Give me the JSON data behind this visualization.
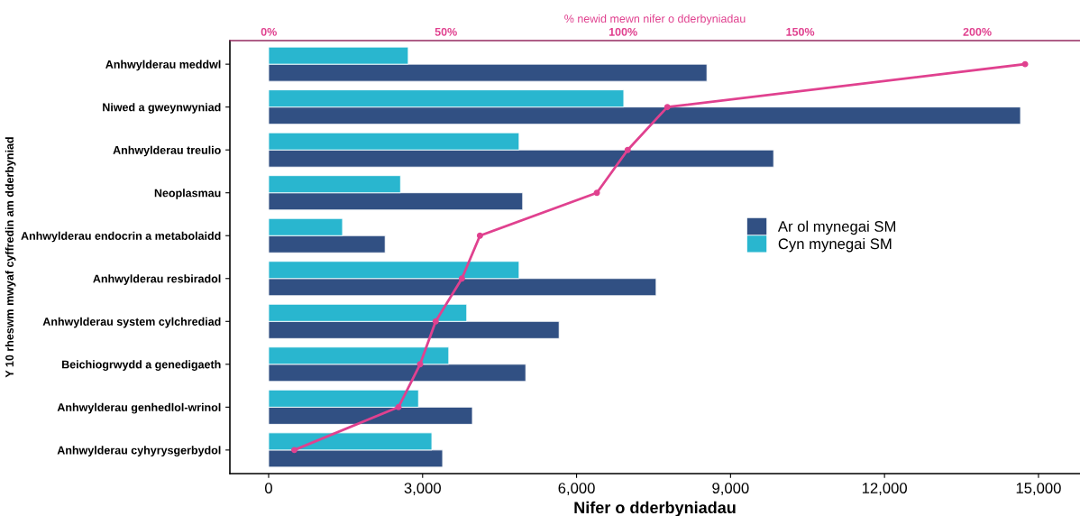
{
  "chart_data": {
    "type": "bar",
    "orientation": "horizontal",
    "xlabel": "Nifer o dderbyniadau",
    "ylabel": "Y 10 rheswm mwyaf cyffredin am dderbyniad",
    "x2label": "% newid mewn nifer o dderbyniadau",
    "categories": [
      "Anhwylderau meddwl",
      "Niwed a gweynwyniad",
      "Anhwylderau treulio",
      "Neoplasmau",
      "Anhwylderau endocrin a metabolaidd",
      "Anhwylderau resbiradol",
      "Anhwylderau system cylchrediad",
      "Beichiogrwydd a genedigaeth",
      "Anhwylderau genhedlol-wrinol",
      "Anhwylderau cyhyrysgerbydol"
    ],
    "series": [
      {
        "name": "Ar ol mynegai SM",
        "color": "#315083",
        "values": [
          8540,
          14650,
          9840,
          4950,
          2270,
          7550,
          5660,
          5010,
          3970,
          3390
        ]
      },
      {
        "name": "Cyn mynegai SM",
        "color": "#29b6cf",
        "values": [
          2720,
          6920,
          4880,
          2570,
          1440,
          4880,
          3860,
          3510,
          2920,
          3180
        ]
      },
      {
        "type": "line",
        "axis": "x2",
        "color": "#e0418f",
        "marker": "circle",
        "values": [
          213.5,
          112.5,
          101.3,
          92.6,
          59.6,
          54.5,
          47.1,
          42.7,
          36.6,
          7.2
        ]
      }
    ],
    "xlim": [
      -755,
      15809
    ],
    "xticks": [
      {
        "value": 0,
        "label": "0"
      },
      {
        "value": 3000,
        "label": "3,000"
      },
      {
        "value": 6000,
        "label": "6,000"
      },
      {
        "value": 9000,
        "label": "9,000"
      },
      {
        "value": 12000,
        "label": "12,000"
      },
      {
        "value": 15000,
        "label": "15,000"
      }
    ],
    "x2lim": [
      -11,
      229
    ],
    "x2ticks": [
      {
        "value": 0,
        "label": "0%"
      },
      {
        "value": 50,
        "label": "50%"
      },
      {
        "value": 100,
        "label": "100%"
      },
      {
        "value": 150,
        "label": "150%"
      },
      {
        "value": 200,
        "label": "200%"
      }
    ],
    "grid": false,
    "legend": "right"
  }
}
